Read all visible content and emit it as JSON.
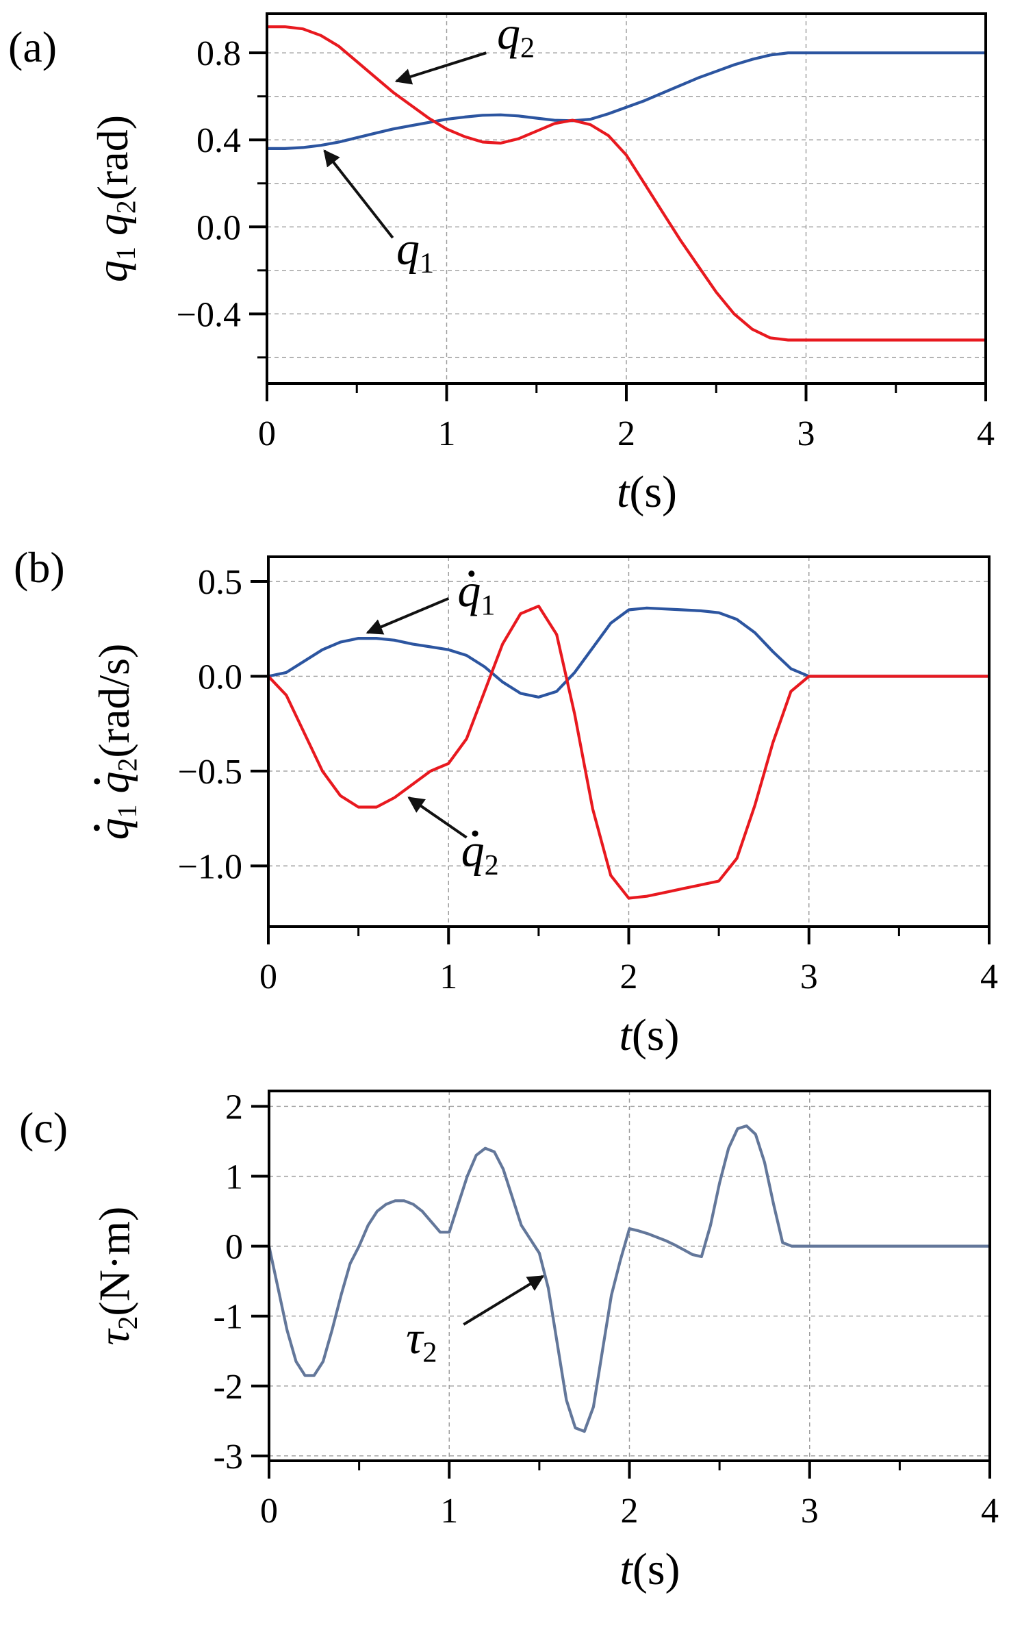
{
  "chart_data": [
    {
      "id": "a",
      "panel_label": "(a)",
      "type": "line",
      "xlabel_italic": "t",
      "xlabel_unit": "(s)",
      "ylabel_parts": [
        {
          "t": "q",
          "style": "italic"
        },
        {
          "t": "1",
          "style": "sub"
        },
        {
          "t": " ",
          "style": "normal"
        },
        {
          "t": "q",
          "style": "italic"
        },
        {
          "t": "2",
          "style": "sub"
        },
        {
          "t": "(rad)",
          "style": "normal"
        }
      ],
      "xlim": [
        0,
        4
      ],
      "ylim": [
        -0.72,
        0.98
      ],
      "xticks": [
        0,
        1,
        2,
        3,
        4
      ],
      "xtick_labels": [
        "0",
        "1",
        "2",
        "3",
        "4"
      ],
      "yticks": [
        0.8,
        0.4,
        0.0,
        -0.4
      ],
      "ytick_labels": [
        "0.8",
        "0.4",
        "0.0",
        "−0.4"
      ],
      "ygrid": [
        0.8,
        0.6,
        0.4,
        0.2,
        0.0,
        -0.2,
        -0.4,
        -0.6
      ],
      "grid": true,
      "series": [
        {
          "name": "q1",
          "color": "#2c55a0",
          "x": [
            0,
            0.1,
            0.2,
            0.3,
            0.4,
            0.5,
            0.6,
            0.7,
            0.8,
            0.9,
            1.0,
            1.1,
            1.2,
            1.3,
            1.4,
            1.5,
            1.6,
            1.7,
            1.8,
            1.9,
            2.0,
            2.1,
            2.2,
            2.3,
            2.4,
            2.5,
            2.6,
            2.7,
            2.8,
            2.9,
            3.0,
            3.5,
            4.0
          ],
          "y": [
            0.36,
            0.36,
            0.365,
            0.375,
            0.39,
            0.41,
            0.43,
            0.45,
            0.465,
            0.48,
            0.495,
            0.505,
            0.513,
            0.515,
            0.51,
            0.5,
            0.49,
            0.488,
            0.495,
            0.52,
            0.55,
            0.58,
            0.615,
            0.65,
            0.685,
            0.715,
            0.745,
            0.77,
            0.79,
            0.8,
            0.8,
            0.8,
            0.8
          ]
        },
        {
          "name": "q2",
          "color": "#e8191f",
          "x": [
            0,
            0.1,
            0.2,
            0.3,
            0.4,
            0.5,
            0.6,
            0.7,
            0.8,
            0.9,
            1.0,
            1.1,
            1.2,
            1.3,
            1.4,
            1.5,
            1.6,
            1.7,
            1.8,
            1.9,
            2.0,
            2.1,
            2.2,
            2.3,
            2.4,
            2.5,
            2.6,
            2.7,
            2.8,
            2.9,
            3.0,
            3.5,
            4.0
          ],
          "y": [
            0.92,
            0.92,
            0.91,
            0.88,
            0.83,
            0.76,
            0.69,
            0.62,
            0.56,
            0.5,
            0.45,
            0.415,
            0.39,
            0.385,
            0.405,
            0.44,
            0.475,
            0.49,
            0.47,
            0.42,
            0.33,
            0.2,
            0.07,
            -0.06,
            -0.18,
            -0.3,
            -0.4,
            -0.47,
            -0.51,
            -0.52,
            -0.52,
            -0.52,
            -0.52
          ]
        }
      ],
      "annotations": [
        {
          "label": "q",
          "sub": "2",
          "dot": false,
          "text_x": 1.28,
          "text_y": 0.82,
          "from_x": 1.22,
          "from_y": 0.8,
          "to_x": 0.72,
          "to_y": 0.67
        },
        {
          "label": "q",
          "sub": "1",
          "dot": false,
          "text_x": 0.72,
          "text_y": -0.17,
          "from_x": 0.7,
          "from_y": -0.05,
          "to_x": 0.32,
          "to_y": 0.35
        }
      ]
    },
    {
      "id": "b",
      "panel_label": "(b)",
      "type": "line",
      "xlabel_italic": "t",
      "xlabel_unit": "(s)",
      "ylabel_parts": [
        {
          "t": "q",
          "style": "italic-dot"
        },
        {
          "t": "1",
          "style": "sub"
        },
        {
          "t": " ",
          "style": "normal"
        },
        {
          "t": "q",
          "style": "italic-dot"
        },
        {
          "t": "2",
          "style": "sub"
        },
        {
          "t": "(rad/s)",
          "style": "normal"
        }
      ],
      "xlim": [
        0,
        4
      ],
      "ylim": [
        -1.32,
        0.63
      ],
      "xticks": [
        0,
        1,
        2,
        3,
        4
      ],
      "xtick_labels": [
        "0",
        "1",
        "2",
        "3",
        "4"
      ],
      "yticks": [
        0.5,
        0.0,
        -0.5,
        -1.0
      ],
      "ytick_labels": [
        "0.5",
        "0.0",
        "−0.5",
        "−1.0"
      ],
      "ygrid": [
        0.5,
        0.0,
        -0.5,
        -1.0
      ],
      "grid": true,
      "series": [
        {
          "name": "q1 dot",
          "color": "#2c55a0",
          "x": [
            0,
            0.1,
            0.2,
            0.3,
            0.4,
            0.5,
            0.6,
            0.7,
            0.8,
            0.9,
            1.0,
            1.1,
            1.2,
            1.3,
            1.4,
            1.5,
            1.6,
            1.7,
            1.8,
            1.9,
            2.0,
            2.1,
            2.2,
            2.3,
            2.4,
            2.5,
            2.6,
            2.7,
            2.8,
            2.9,
            3.0,
            3.5,
            4.0
          ],
          "y": [
            0,
            0.02,
            0.08,
            0.14,
            0.18,
            0.2,
            0.2,
            0.19,
            0.17,
            0.155,
            0.14,
            0.11,
            0.05,
            -0.03,
            -0.09,
            -0.11,
            -0.08,
            0.02,
            0.15,
            0.28,
            0.35,
            0.36,
            0.355,
            0.35,
            0.345,
            0.335,
            0.3,
            0.23,
            0.13,
            0.04,
            0,
            0,
            0
          ]
        },
        {
          "name": "q2 dot",
          "color": "#e8191f",
          "x": [
            0,
            0.1,
            0.2,
            0.3,
            0.4,
            0.5,
            0.6,
            0.7,
            0.8,
            0.9,
            1.0,
            1.1,
            1.2,
            1.3,
            1.4,
            1.5,
            1.6,
            1.7,
            1.8,
            1.9,
            2.0,
            2.1,
            2.2,
            2.3,
            2.4,
            2.5,
            2.6,
            2.7,
            2.8,
            2.9,
            3.0,
            3.5,
            4.0
          ],
          "y": [
            0,
            -0.1,
            -0.3,
            -0.5,
            -0.63,
            -0.69,
            -0.69,
            -0.64,
            -0.57,
            -0.5,
            -0.46,
            -0.33,
            -0.08,
            0.17,
            0.33,
            0.37,
            0.22,
            -0.2,
            -0.7,
            -1.05,
            -1.17,
            -1.16,
            -1.14,
            -1.12,
            -1.1,
            -1.08,
            -0.96,
            -0.68,
            -0.35,
            -0.08,
            0,
            0,
            0
          ]
        }
      ],
      "annotations": [
        {
          "label": "q",
          "sub": "1",
          "dot": true,
          "text_x": 1.05,
          "text_y": 0.37,
          "from_x": 1.0,
          "from_y": 0.41,
          "to_x": 0.55,
          "to_y": 0.23
        },
        {
          "label": "q",
          "sub": "2",
          "dot": true,
          "text_x": 1.07,
          "text_y": -1.0,
          "from_x": 1.1,
          "from_y": -0.85,
          "to_x": 0.78,
          "to_y": -0.64
        }
      ]
    },
    {
      "id": "c",
      "panel_label": "(c)",
      "type": "line",
      "xlabel_italic": "t",
      "xlabel_unit": "(s)",
      "ylabel_parts": [
        {
          "t": "τ",
          "style": "italic"
        },
        {
          "t": "2",
          "style": "sub"
        },
        {
          "t": "(N·m)",
          "style": "normal"
        }
      ],
      "xlim": [
        0,
        4
      ],
      "ylim": [
        -3.07,
        2.22
      ],
      "xticks": [
        0,
        1,
        2,
        3,
        4
      ],
      "xtick_labels": [
        "0",
        "1",
        "2",
        "3",
        "4"
      ],
      "yticks": [
        2,
        1,
        0,
        -1,
        -2,
        -3
      ],
      "ytick_labels": [
        "2",
        "1",
        "0",
        "-1",
        "-2",
        "-3"
      ],
      "ygrid": [
        2,
        1,
        0,
        -1,
        -2,
        -3
      ],
      "grid": true,
      "series": [
        {
          "name": "tau2",
          "color": "#63779a",
          "x": [
            0,
            0.05,
            0.1,
            0.15,
            0.2,
            0.25,
            0.3,
            0.35,
            0.4,
            0.45,
            0.5,
            0.55,
            0.6,
            0.65,
            0.7,
            0.75,
            0.8,
            0.85,
            0.9,
            0.95,
            1.0,
            1.05,
            1.1,
            1.15,
            1.2,
            1.25,
            1.3,
            1.35,
            1.4,
            1.45,
            1.5,
            1.55,
            1.6,
            1.65,
            1.7,
            1.75,
            1.8,
            1.85,
            1.9,
            1.95,
            2.0,
            2.05,
            2.1,
            2.15,
            2.2,
            2.25,
            2.3,
            2.35,
            2.4,
            2.45,
            2.5,
            2.55,
            2.6,
            2.65,
            2.7,
            2.75,
            2.8,
            2.85,
            2.9,
            2.95,
            3.0,
            3.5,
            4.0
          ],
          "y": [
            0,
            -0.6,
            -1.2,
            -1.65,
            -1.85,
            -1.85,
            -1.65,
            -1.2,
            -0.7,
            -0.25,
            0.0,
            0.3,
            0.5,
            0.6,
            0.65,
            0.65,
            0.6,
            0.5,
            0.35,
            0.2,
            0.2,
            0.6,
            1.0,
            1.3,
            1.4,
            1.35,
            1.1,
            0.7,
            0.3,
            0.1,
            -0.1,
            -0.6,
            -1.4,
            -2.2,
            -2.6,
            -2.65,
            -2.3,
            -1.5,
            -0.7,
            -0.2,
            0.25,
            0.22,
            0.18,
            0.13,
            0.08,
            0.02,
            -0.05,
            -0.12,
            -0.15,
            0.3,
            0.9,
            1.4,
            1.68,
            1.72,
            1.6,
            1.2,
            0.6,
            0.05,
            0.0,
            0,
            0,
            0,
            0
          ]
        }
      ],
      "annotations": [
        {
          "label": "τ",
          "sub": "2",
          "dot": false,
          "text_x": 0.76,
          "text_y": -1.53,
          "from_x": 1.08,
          "from_y": -1.12,
          "to_x": 1.52,
          "to_y": -0.43
        }
      ]
    }
  ]
}
